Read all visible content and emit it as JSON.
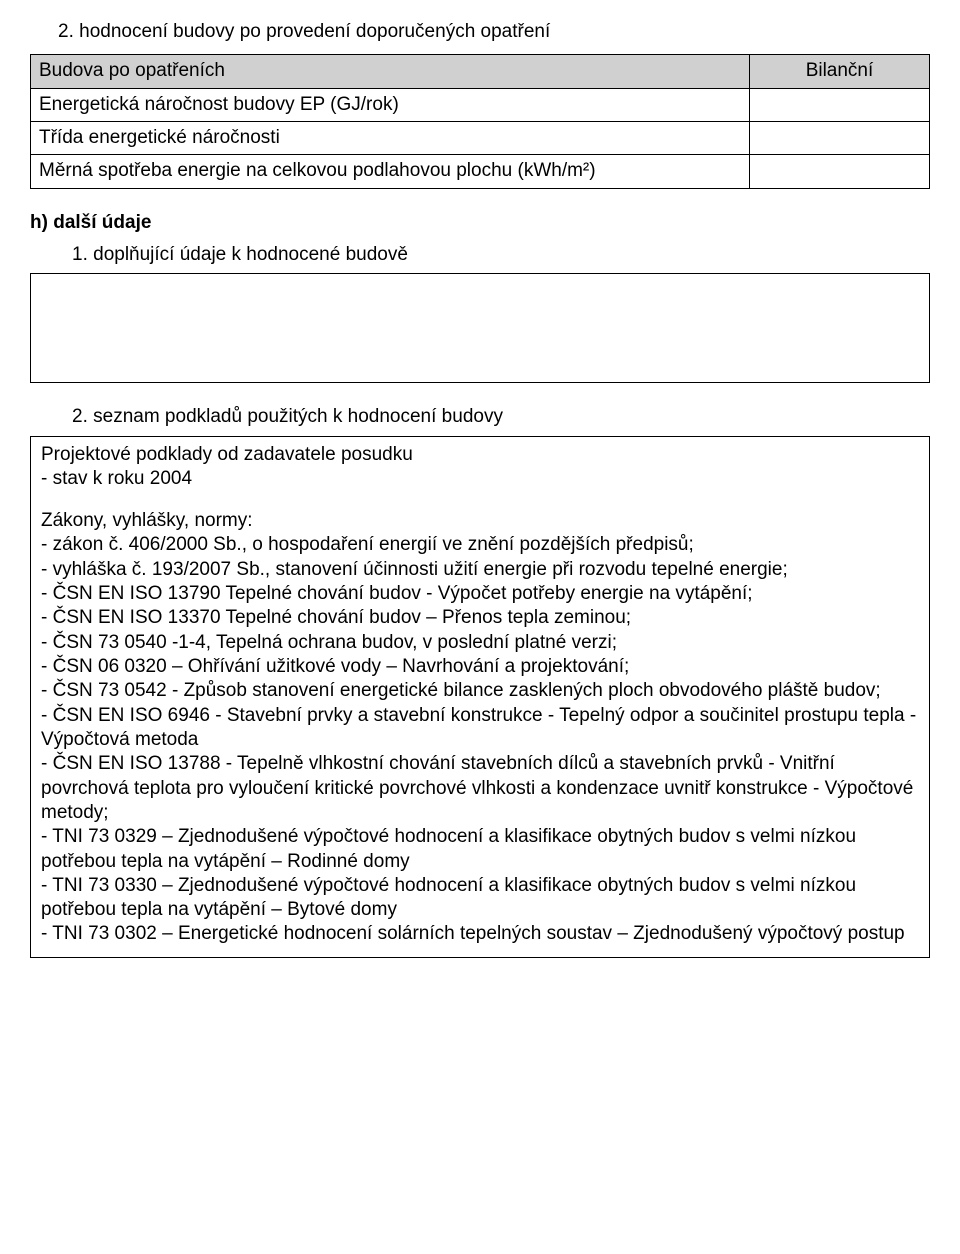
{
  "title": "2.   hodnocení budovy po provedení doporučených opatření",
  "table1": {
    "hdr_left": "Budova po opatřeních",
    "hdr_right": "Bilanční",
    "row1": "Energetická náročnost budovy EP (GJ/rok)",
    "row2": "Třída energetické náročnosti",
    "row3": "Měrná spotřeba energie na celkovou podlahovou plochu (kWh/m²)"
  },
  "h_section": "h)   další údaje",
  "sub1": "1.   doplňující údaje k hodnocené budově",
  "sub2": "2.   seznam podkladů použitých k hodnocení budovy",
  "box2": {
    "p1a": "Projektové podklady od zadavatele posudku",
    "p1b": "- stav k roku 2004",
    "p2a": "Zákony, vyhlášky, normy:",
    "lines": [
      "- zákon č. 406/2000 Sb., o hospodaření energií ve znění pozdějších předpisů;",
      "- vyhláška č. 193/2007 Sb., stanovení účinnosti užití energie při rozvodu tepelné energie;",
      "- ČSN EN ISO 13790 Tepelné chování budov - Výpočet potřeby energie na vytápění;",
      "- ČSN EN ISO 13370 Tepelné chování budov – Přenos tepla zeminou;",
      "- ČSN 73 0540 -1-4, Tepelná ochrana budov, v poslední platné verzi;",
      "- ČSN 06 0320 – Ohřívání užitkové vody – Navrhování a projektování;",
      "- ČSN 73 0542 - Způsob stanovení energetické bilance zasklených ploch obvodového pláště budov;",
      "- ČSN EN ISO 6946 - Stavební prvky a stavební konstrukce - Tepelný odpor a součinitel prostupu tepla - Výpočtová metoda",
      "- ČSN EN ISO 13788 - Tepelně vlhkostní chování stavebních dílců a stavebních prvků - Vnitřní povrchová teplota pro vyloučení kritické povrchové vlhkosti a kondenzace uvnitř konstrukce - Výpočtové metody;",
      "- TNI 73 0329 – Zjednodušené výpočtové hodnocení a klasifikace obytných budov s velmi nízkou potřebou tepla na vytápění – Rodinné domy",
      "- TNI 73 0330 – Zjednodušené výpočtové hodnocení a klasifikace obytných budov s velmi nízkou potřebou tepla na vytápění – Bytové domy",
      "- TNI 73 0302 – Energetické hodnocení solárních tepelných soustav – Zjednodušený výpočtový postup"
    ]
  }
}
